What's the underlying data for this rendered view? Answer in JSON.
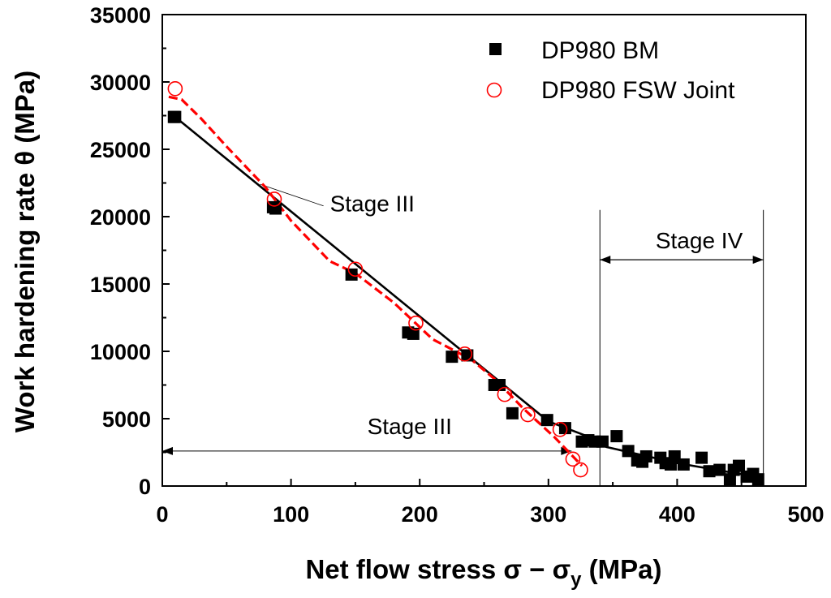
{
  "chart_data": {
    "type": "scatter",
    "xlabel_main": "Net flow stress ",
    "xlabel_sigma": "σ",
    "xlabel_minus": " − ",
    "xlabel_sub": "y",
    "xlabel_units": " (MPa)",
    "ylabel": "Work hardening rate θ (MPa)",
    "xlim": [
      0,
      500
    ],
    "ylim": [
      0,
      35000
    ],
    "xticks": [
      "0",
      "100",
      "200",
      "300",
      "400",
      "500"
    ],
    "yticks": [
      "0",
      "5000",
      "10000",
      "15000",
      "20000",
      "25000",
      "30000",
      "35000"
    ],
    "xtick_values": [
      0,
      100,
      200,
      300,
      400,
      500
    ],
    "ytick_values": [
      0,
      5000,
      10000,
      15000,
      20000,
      25000,
      30000,
      35000
    ],
    "series": [
      {
        "name": "DP980 BM",
        "marker": "square-filled",
        "color": "#000000",
        "points": [
          [
            9,
            27400
          ],
          [
            10,
            27400
          ],
          [
            86,
            20700
          ],
          [
            88,
            20600
          ],
          [
            147,
            15700
          ],
          [
            191,
            11400
          ],
          [
            195,
            11300
          ],
          [
            225,
            9600
          ],
          [
            237,
            9700
          ],
          [
            258,
            7500
          ],
          [
            262,
            7500
          ],
          [
            272,
            5400
          ],
          [
            299,
            4900
          ],
          [
            313,
            4300
          ],
          [
            326,
            3300
          ],
          [
            331,
            3400
          ],
          [
            336,
            3300
          ],
          [
            342,
            3300
          ],
          [
            353,
            3700
          ],
          [
            362,
            2600
          ],
          [
            369,
            1900
          ],
          [
            373,
            1800
          ],
          [
            376,
            2200
          ],
          [
            387,
            2100
          ],
          [
            391,
            1700
          ],
          [
            395,
            1600
          ],
          [
            398,
            2200
          ],
          [
            405,
            1600
          ],
          [
            419,
            2100
          ],
          [
            425,
            1100
          ],
          [
            433,
            1200
          ],
          [
            441,
            500
          ],
          [
            444,
            1200
          ],
          [
            448,
            1500
          ],
          [
            454,
            700
          ],
          [
            459,
            900
          ],
          [
            463,
            500
          ]
        ]
      },
      {
        "name": "DP980 FSW Joint",
        "marker": "circle-open",
        "color": "#ff0000",
        "points": [
          [
            10,
            29500
          ],
          [
            87,
            21300
          ],
          [
            150,
            16100
          ],
          [
            197,
            12100
          ],
          [
            235,
            9800
          ],
          [
            266,
            6800
          ],
          [
            284,
            5300
          ],
          [
            309,
            4200
          ],
          [
            319,
            2000
          ],
          [
            325,
            1200
          ]
        ]
      }
    ],
    "fits": [
      {
        "name": "BM fit",
        "style": "solid",
        "color": "#000000",
        "points": [
          [
            10,
            27400
          ],
          [
            300,
            4800
          ],
          [
            330,
            3700
          ],
          [
            340,
            3300
          ],
          [
            345,
            2900
          ],
          [
            400,
            1700
          ],
          [
            467,
            600
          ]
        ]
      },
      {
        "name": "FSW fit",
        "style": "dashed",
        "color": "#ff0000",
        "points": [
          [
            5,
            28900
          ],
          [
            15,
            28700
          ],
          [
            30,
            27300
          ],
          [
            50,
            25200
          ],
          [
            80,
            22200
          ],
          [
            100,
            19700
          ],
          [
            130,
            16700
          ],
          [
            150,
            15800
          ],
          [
            180,
            13600
          ],
          [
            210,
            10900
          ],
          [
            240,
            9400
          ],
          [
            260,
            7800
          ],
          [
            280,
            5800
          ],
          [
            305,
            3600
          ],
          [
            320,
            2100
          ],
          [
            326,
            1500
          ]
        ]
      }
    ],
    "annotations": [
      {
        "text": "Stage III",
        "at": [
          100,
          21100
        ],
        "pointer_from": [
          76,
          22400
        ]
      },
      {
        "text": "Stage III",
        "at": [
          170,
          4400
        ],
        "span": [
          0,
          318
        ],
        "arrow_y": 2600
      },
      {
        "text": "Stage IV",
        "at": [
          382,
          18200
        ],
        "span": [
          340,
          467
        ],
        "arrow_y": 16800
      }
    ],
    "vlines": [
      340,
      467
    ],
    "legend_position": "top-right"
  },
  "colors": {
    "black": "#000000",
    "red": "#ff0000",
    "background": "#ffffff"
  }
}
